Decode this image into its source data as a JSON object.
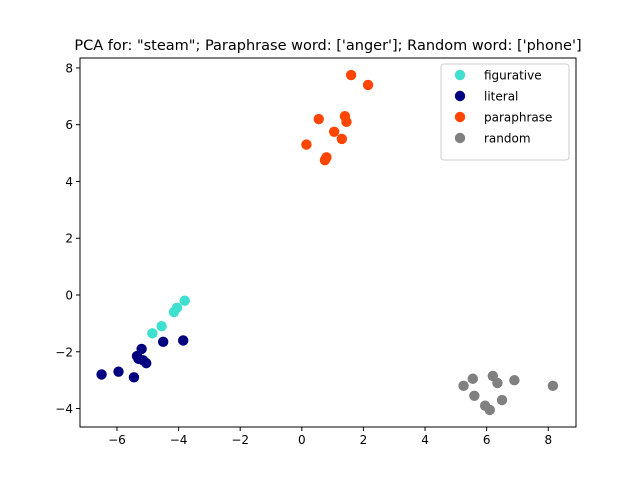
{
  "chart_data": {
    "type": "scatter",
    "title": "PCA for: \"steam\"; Paraphrase word: ['anger']; Random word: ['phone']",
    "xlabel": "",
    "ylabel": "",
    "xlim": [
      -7.2,
      8.9
    ],
    "ylim": [
      -4.65,
      8.35
    ],
    "x_ticks": [
      -6,
      -4,
      -2,
      0,
      2,
      4,
      6,
      8
    ],
    "y_ticks": [
      -4,
      -2,
      0,
      2,
      4,
      6,
      8
    ],
    "x_tick_labels": [
      "−6",
      "−4",
      "−2",
      "0",
      "2",
      "4",
      "6",
      "8"
    ],
    "y_tick_labels": [
      "−4",
      "−2",
      "0",
      "2",
      "4",
      "6",
      "8"
    ],
    "grid": false,
    "legend_position": "top-right",
    "series": [
      {
        "name": "figurative",
        "color": "#40e0d0",
        "points": [
          [
            -4.85,
            -1.35
          ],
          [
            -4.55,
            -1.1
          ],
          [
            -4.15,
            -0.6
          ],
          [
            -4.05,
            -0.45
          ],
          [
            -3.8,
            -0.2
          ]
        ]
      },
      {
        "name": "literal",
        "color": "#000080",
        "points": [
          [
            -6.5,
            -2.8
          ],
          [
            -5.95,
            -2.7
          ],
          [
            -5.45,
            -2.9
          ],
          [
            -5.35,
            -2.15
          ],
          [
            -5.3,
            -2.25
          ],
          [
            -5.2,
            -1.9
          ],
          [
            -5.15,
            -2.3
          ],
          [
            -5.05,
            -2.4
          ],
          [
            -4.5,
            -1.65
          ],
          [
            -3.85,
            -1.6
          ]
        ]
      },
      {
        "name": "paraphrase",
        "color": "#ff4500",
        "points": [
          [
            0.15,
            5.3
          ],
          [
            0.55,
            6.2
          ],
          [
            0.75,
            4.75
          ],
          [
            0.8,
            4.85
          ],
          [
            1.05,
            5.75
          ],
          [
            1.3,
            5.5
          ],
          [
            1.4,
            6.3
          ],
          [
            1.45,
            6.1
          ],
          [
            1.6,
            7.75
          ],
          [
            2.15,
            7.4
          ]
        ]
      },
      {
        "name": "random",
        "color": "#808080",
        "points": [
          [
            5.25,
            -3.2
          ],
          [
            5.55,
            -2.95
          ],
          [
            5.6,
            -3.55
          ],
          [
            5.95,
            -3.9
          ],
          [
            6.1,
            -4.05
          ],
          [
            6.2,
            -2.85
          ],
          [
            6.35,
            -3.1
          ],
          [
            6.5,
            -3.7
          ],
          [
            6.9,
            -3.0
          ],
          [
            8.15,
            -3.2
          ]
        ]
      }
    ]
  }
}
